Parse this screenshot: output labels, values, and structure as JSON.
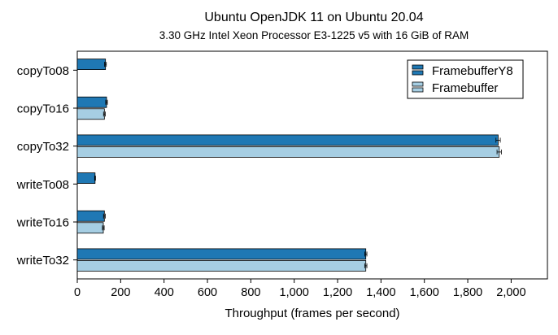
{
  "chart_data": {
    "type": "bar",
    "orientation": "horizontal",
    "title": "Ubuntu OpenJDK 11 on Ubuntu 20.04",
    "subtitle": "3.30 GHz Intel Xeon Processor E3-1225 v5 with 16 GiB of RAM",
    "xlabel": "Throughput (frames per second)",
    "ylabel": "",
    "xlim": [
      0,
      2150
    ],
    "xticks": [
      0,
      200,
      400,
      600,
      800,
      1000,
      1200,
      1400,
      1600,
      1800,
      2000
    ],
    "xtick_labels": [
      "0",
      "200",
      "400",
      "600",
      "800",
      "1,000",
      "1,200",
      "1,400",
      "1,600",
      "1,800",
      "2,000"
    ],
    "categories": [
      "copyTo08",
      "copyTo16",
      "copyTo32",
      "writeTo08",
      "writeTo16",
      "writeTo32"
    ],
    "series": [
      {
        "name": "FramebufferY8",
        "color": "#1f78b4",
        "values": [
          130,
          135,
          1940,
          82,
          125,
          1330
        ],
        "errors": [
          4,
          4,
          10,
          2,
          4,
          5
        ]
      },
      {
        "name": "Framebuffer",
        "color": "#a6cee3",
        "values": [
          null,
          125,
          1945,
          null,
          120,
          1330
        ],
        "errors": [
          0,
          4,
          10,
          0,
          4,
          5
        ]
      }
    ],
    "legend_position": "top-right",
    "grid": false
  }
}
